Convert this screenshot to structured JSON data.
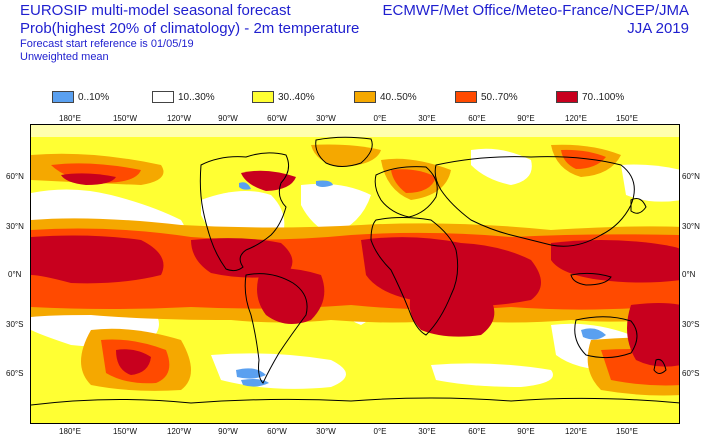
{
  "header": {
    "title_line1": "EUROSIP multi-model seasonal forecast",
    "title_line2": "Prob(highest 20% of climatology) - 2m temperature",
    "forecast_ref": "Forecast start reference is 01/05/19",
    "mean_type": "Unweighted mean",
    "agencies": "ECMWF/Met Office/Meteo-France/NCEP/JMA",
    "season": "JJA 2019"
  },
  "legend": [
    {
      "label": "0..10%",
      "color": "#5aa0f0"
    },
    {
      "label": "10..30%",
      "color": "#ffffff"
    },
    {
      "label": "30..40%",
      "color": "#ffff33"
    },
    {
      "label": "40..50%",
      "color": "#f5a800"
    },
    {
      "label": "50..70%",
      "color": "#ff4a00"
    },
    {
      "label": "70..100%",
      "color": "#c8001e"
    }
  ],
  "lon_labels": [
    "180°E",
    "150°W",
    "120°W",
    "90°W",
    "60°W",
    "30°W",
    "0°E",
    "30°E",
    "60°E",
    "90°E",
    "120°E",
    "150°E"
  ],
  "lat_labels": [
    "60°N",
    "30°N",
    "0°N",
    "30°S",
    "60°S"
  ]
}
